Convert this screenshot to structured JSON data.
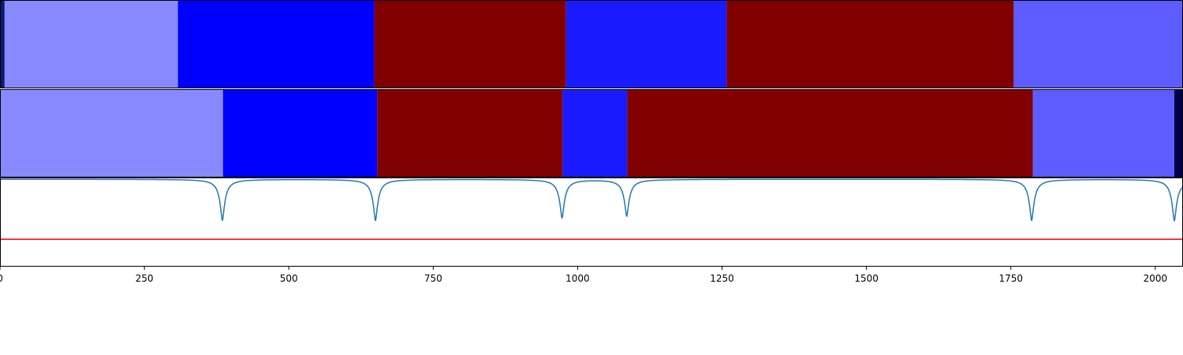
{
  "chart_data": {
    "type": "segmentation-with-signal",
    "xlim": [
      0,
      2048
    ],
    "xticks": [
      0,
      250,
      500,
      750,
      1000,
      1250,
      1500,
      1750,
      2000
    ],
    "xtick_labels": [
      "0",
      "250",
      "500",
      "750",
      "1000",
      "1250",
      "1500",
      "1750",
      "2000"
    ],
    "rows": [
      {
        "segments": [
          {
            "start": 0,
            "end": 8,
            "color": "#0a1a6e"
          },
          {
            "start": 8,
            "end": 308,
            "color": "#8888ff"
          },
          {
            "start": 308,
            "end": 648,
            "color": "#0000ff"
          },
          {
            "start": 648,
            "end": 980,
            "color": "#800000"
          },
          {
            "start": 980,
            "end": 1258,
            "color": "#1a1aff"
          },
          {
            "start": 1258,
            "end": 1755,
            "color": "#800000"
          },
          {
            "start": 1755,
            "end": 2048,
            "color": "#5c5cff"
          }
        ]
      },
      {
        "segments": [
          {
            "start": 0,
            "end": 386,
            "color": "#8888ff"
          },
          {
            "start": 386,
            "end": 653,
            "color": "#0000ff"
          },
          {
            "start": 653,
            "end": 974,
            "color": "#800000"
          },
          {
            "start": 974,
            "end": 1086,
            "color": "#1a1aff"
          },
          {
            "start": 1086,
            "end": 1788,
            "color": "#800000"
          },
          {
            "start": 1788,
            "end": 2033,
            "color": "#5c5cff"
          },
          {
            "start": 2033,
            "end": 2048,
            "color": "#00004a"
          }
        ]
      }
    ],
    "signal": {
      "ylim": [
        0,
        1
      ],
      "baseline": 0.99,
      "dips": [
        {
          "x": 385,
          "min": 0.52
        },
        {
          "x": 650,
          "min": 0.52
        },
        {
          "x": 973,
          "min": 0.55
        },
        {
          "x": 1085,
          "min": 0.57
        },
        {
          "x": 1786,
          "min": 0.52
        },
        {
          "x": 2033,
          "min": 0.52
        }
      ],
      "trailing_rise": {
        "x": 2048,
        "value": 0.93
      },
      "color": "#1f77b4"
    },
    "threshold": {
      "value": 0.31,
      "color": "#ff0000"
    }
  }
}
